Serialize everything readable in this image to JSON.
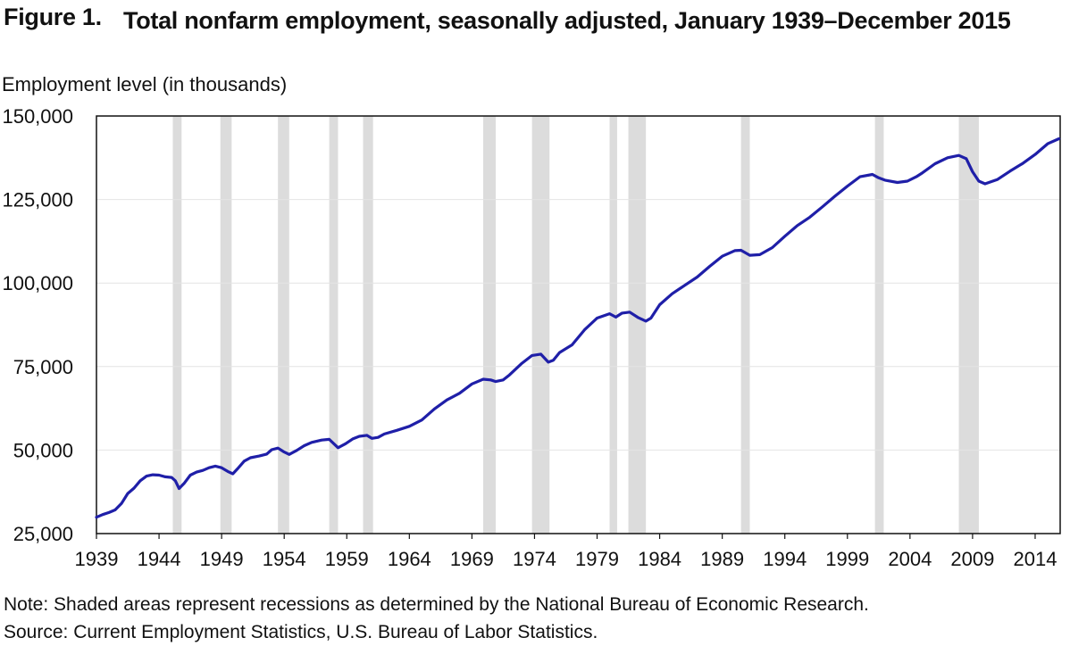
{
  "figure": {
    "number": "Figure 1.",
    "title": "Total nonfarm employment, seasonally adjusted, January 1939–December 2015",
    "note": "Note:  Shaded areas represent recessions as determined by the National Bureau of Economic Research.",
    "source": "Source: Current Employment Statistics, U.S. Bureau of Labor Statistics."
  },
  "chart_data": {
    "type": "line",
    "title": "Total nonfarm employment, seasonally adjusted, January 1939–December 2015",
    "ylabel": "Employment level (in thousands)",
    "xlabel": "",
    "ylim": [
      25000,
      150000
    ],
    "xlim": [
      1939.0,
      2016.0
    ],
    "y_ticks": [
      25000,
      50000,
      75000,
      100000,
      125000,
      150000
    ],
    "y_tick_labels": [
      "25,000",
      "50,000",
      "75,000",
      "100,000",
      "125,000",
      "150,000"
    ],
    "x_ticks": [
      1939,
      1944,
      1949,
      1954,
      1959,
      1964,
      1969,
      1974,
      1979,
      1984,
      1989,
      1994,
      1999,
      2004,
      2009,
      2014
    ],
    "x_tick_labels": [
      "1939",
      "1944",
      "1949",
      "1954",
      "1959",
      "1964",
      "1969",
      "1974",
      "1979",
      "1984",
      "1989",
      "1994",
      "1999",
      "2004",
      "2009",
      "2014"
    ],
    "grid": "horizontal",
    "line_color": "#1f1fa8",
    "recession_color": "#dcdcdc",
    "recessions": [
      [
        1945.1,
        1945.8
      ],
      [
        1948.9,
        1949.8
      ],
      [
        1953.5,
        1954.4
      ],
      [
        1957.6,
        1958.3
      ],
      [
        1960.3,
        1961.1
      ],
      [
        1969.9,
        1970.9
      ],
      [
        1973.8,
        1975.2
      ],
      [
        1980.0,
        1980.6
      ],
      [
        1981.5,
        1982.9
      ],
      [
        1990.5,
        1991.2
      ],
      [
        2001.2,
        2001.9
      ],
      [
        2007.9,
        2009.5
      ]
    ],
    "series": [
      {
        "values": [
          [
            1939.0,
            29900
          ],
          [
            1939.5,
            30700
          ],
          [
            1940.0,
            31300
          ],
          [
            1940.5,
            32100
          ],
          [
            1941.0,
            34000
          ],
          [
            1941.5,
            37000
          ],
          [
            1942.0,
            38600
          ],
          [
            1942.5,
            40800
          ],
          [
            1943.0,
            42200
          ],
          [
            1943.5,
            42600
          ],
          [
            1944.0,
            42500
          ],
          [
            1944.5,
            42000
          ],
          [
            1945.0,
            41800
          ],
          [
            1945.3,
            40800
          ],
          [
            1945.6,
            38500
          ],
          [
            1946.0,
            40000
          ],
          [
            1946.5,
            42500
          ],
          [
            1947.0,
            43400
          ],
          [
            1947.5,
            43900
          ],
          [
            1948.0,
            44700
          ],
          [
            1948.5,
            45200
          ],
          [
            1949.0,
            44700
          ],
          [
            1949.5,
            43600
          ],
          [
            1949.9,
            42900
          ],
          [
            1950.3,
            44500
          ],
          [
            1950.8,
            46700
          ],
          [
            1951.3,
            47700
          ],
          [
            1952.0,
            48200
          ],
          [
            1952.6,
            48800
          ],
          [
            1953.0,
            50100
          ],
          [
            1953.5,
            50600
          ],
          [
            1954.0,
            49400
          ],
          [
            1954.4,
            48700
          ],
          [
            1955.0,
            49900
          ],
          [
            1955.6,
            51300
          ],
          [
            1956.2,
            52300
          ],
          [
            1957.0,
            53000
          ],
          [
            1957.6,
            53200
          ],
          [
            1958.0,
            51800
          ],
          [
            1958.3,
            50700
          ],
          [
            1958.9,
            51900
          ],
          [
            1959.5,
            53400
          ],
          [
            1960.0,
            54100
          ],
          [
            1960.6,
            54400
          ],
          [
            1961.0,
            53500
          ],
          [
            1961.5,
            53800
          ],
          [
            1962.0,
            54800
          ],
          [
            1963.0,
            55900
          ],
          [
            1964.0,
            57100
          ],
          [
            1965.0,
            59000
          ],
          [
            1966.0,
            62300
          ],
          [
            1967.0,
            65000
          ],
          [
            1968.0,
            67000
          ],
          [
            1969.0,
            69800
          ],
          [
            1969.9,
            71200
          ],
          [
            1970.5,
            71000
          ],
          [
            1970.9,
            70500
          ],
          [
            1971.5,
            71000
          ],
          [
            1972.0,
            72500
          ],
          [
            1973.0,
            76000
          ],
          [
            1973.8,
            78300
          ],
          [
            1974.5,
            78700
          ],
          [
            1975.1,
            76300
          ],
          [
            1975.5,
            76900
          ],
          [
            1976.0,
            79200
          ],
          [
            1977.0,
            81500
          ],
          [
            1978.0,
            86000
          ],
          [
            1979.0,
            89500
          ],
          [
            1980.0,
            90800
          ],
          [
            1980.5,
            89800
          ],
          [
            1981.0,
            91000
          ],
          [
            1981.6,
            91300
          ],
          [
            1982.3,
            89600
          ],
          [
            1982.9,
            88600
          ],
          [
            1983.3,
            89500
          ],
          [
            1984.0,
            93500
          ],
          [
            1985.0,
            96800
          ],
          [
            1986.0,
            99300
          ],
          [
            1987.0,
            101800
          ],
          [
            1988.0,
            105000
          ],
          [
            1989.0,
            108000
          ],
          [
            1990.0,
            109700
          ],
          [
            1990.5,
            109800
          ],
          [
            1991.2,
            108300
          ],
          [
            1992.0,
            108500
          ],
          [
            1993.0,
            110600
          ],
          [
            1994.0,
            114000
          ],
          [
            1995.0,
            117200
          ],
          [
            1996.0,
            119700
          ],
          [
            1997.0,
            122800
          ],
          [
            1998.0,
            126000
          ],
          [
            1999.0,
            129000
          ],
          [
            2000.0,
            131800
          ],
          [
            2001.0,
            132500
          ],
          [
            2001.5,
            131500
          ],
          [
            2002.0,
            130800
          ],
          [
            2003.0,
            130100
          ],
          [
            2003.8,
            130500
          ],
          [
            2004.5,
            131800
          ],
          [
            2005.0,
            133000
          ],
          [
            2006.0,
            135700
          ],
          [
            2007.0,
            137500
          ],
          [
            2007.9,
            138200
          ],
          [
            2008.5,
            137200
          ],
          [
            2009.0,
            133300
          ],
          [
            2009.5,
            130500
          ],
          [
            2010.0,
            129700
          ],
          [
            2011.0,
            131000
          ],
          [
            2012.0,
            133500
          ],
          [
            2013.0,
            135800
          ],
          [
            2014.0,
            138500
          ],
          [
            2015.0,
            141700
          ],
          [
            2015.9,
            143200
          ]
        ]
      }
    ]
  }
}
